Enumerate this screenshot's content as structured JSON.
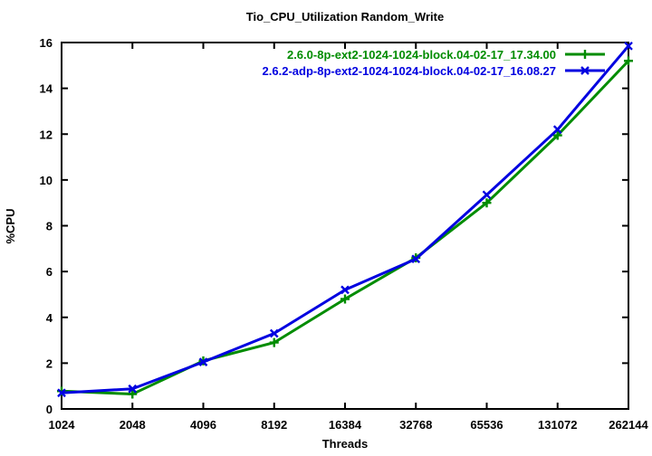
{
  "page": {
    "background": "#ffffff"
  },
  "chart_data": {
    "type": "line",
    "title": "Tio_CPU_Utilization Random_Write",
    "xlabel": "Threads",
    "ylabel": "%CPU",
    "x_scale": "log2",
    "xlim": [
      1024,
      262144
    ],
    "ylim": [
      0,
      16
    ],
    "grid": false,
    "legend_position": "top-right-inside",
    "axis_color": "#000000",
    "x_ticks": [
      1024,
      2048,
      4096,
      8192,
      16384,
      32768,
      65536,
      131072,
      262144
    ],
    "x_tick_labels": [
      "1024",
      "2048",
      "4096",
      "8192",
      "16384",
      "32768",
      "65536",
      "131072",
      "262144"
    ],
    "y_ticks": [
      0,
      2,
      4,
      6,
      8,
      10,
      12,
      14,
      16
    ],
    "y_tick_labels": [
      "0",
      "2",
      "4",
      "6",
      "8",
      "10",
      "12",
      "14",
      "16"
    ],
    "series": [
      {
        "name": "2.6.0-8p-ext2-1024-1024-block.04-02-17_17.34.00",
        "color": "#008c00",
        "marker": "plus",
        "x": [
          1024,
          2048,
          4096,
          8192,
          16384,
          32768,
          65536,
          131072,
          262144
        ],
        "values": [
          0.78,
          0.65,
          2.1,
          2.9,
          4.8,
          6.6,
          9.0,
          11.95,
          15.2
        ]
      },
      {
        "name": "2.6.2-adp-8p-ext2-1024-1024-block.04-02-17_16.08.27",
        "color": "#0000e0",
        "marker": "cross",
        "x": [
          1024,
          2048,
          4096,
          8192,
          16384,
          32768,
          65536,
          131072,
          262144
        ],
        "values": [
          0.7,
          0.88,
          2.05,
          3.3,
          5.2,
          6.55,
          9.35,
          12.2,
          15.85
        ]
      }
    ]
  }
}
